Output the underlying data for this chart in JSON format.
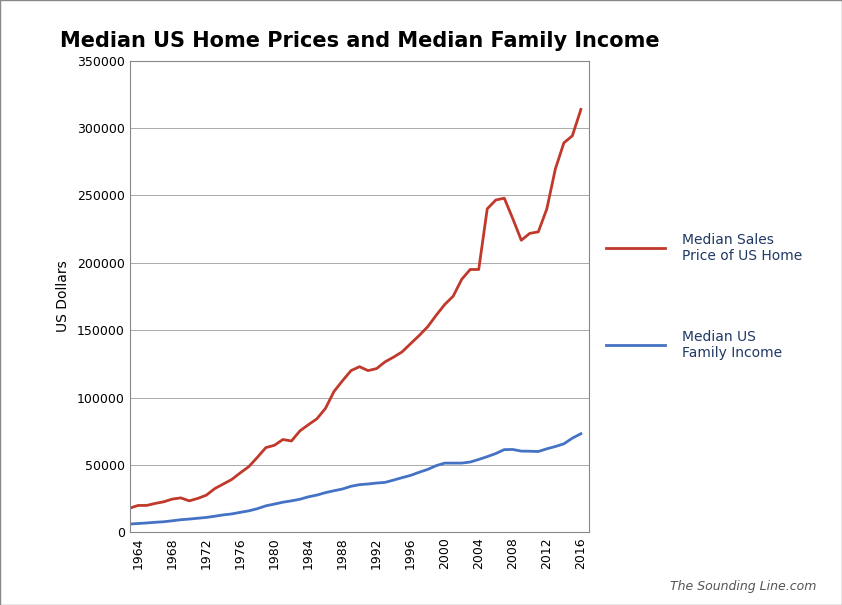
{
  "title": "Median US Home Prices and Median Family Income",
  "ylabel": "US Dollars",
  "background_color": "#ffffff",
  "grid_color": "#aaaaaa",
  "legend_label_home": "Median Sales\nPrice of US Home",
  "legend_label_income": "Median US\nFamily Income",
  "home_color": "#c0392b",
  "income_color": "#4472c4",
  "legend_text_color": "#1f3864",
  "watermark": "The Sounding Line.com",
  "ylim": [
    0,
    350000
  ],
  "yticks": [
    0,
    50000,
    100000,
    150000,
    200000,
    250000,
    300000,
    350000
  ],
  "xlim": [
    1963,
    2017
  ],
  "xticks": [
    1964,
    1968,
    1972,
    1976,
    1980,
    1984,
    1988,
    1992,
    1996,
    2000,
    2004,
    2008,
    2012,
    2016
  ],
  "home_prices": {
    "years": [
      1963,
      1964,
      1965,
      1966,
      1967,
      1968,
      1969,
      1970,
      1971,
      1972,
      1973,
      1974,
      1975,
      1976,
      1977,
      1978,
      1979,
      1980,
      1981,
      1982,
      1983,
      1984,
      1985,
      1986,
      1987,
      1988,
      1989,
      1990,
      1991,
      1992,
      1993,
      1994,
      1995,
      1996,
      1997,
      1998,
      1999,
      2000,
      2001,
      2002,
      2003,
      2004,
      2005,
      2006,
      2007,
      2008,
      2009,
      2010,
      2011,
      2012,
      2013,
      2014,
      2015,
      2016
    ],
    "values": [
      18000,
      20000,
      20000,
      21500,
      22700,
      24700,
      25600,
      23400,
      25200,
      27600,
      32500,
      35900,
      39300,
      44200,
      48800,
      55700,
      62900,
      64600,
      68900,
      67800,
      75300,
      79900,
      84300,
      92000,
      104500,
      112500,
      120000,
      122900,
      120000,
      121500,
      126500,
      130000,
      133900,
      140000,
      146000,
      152500,
      161000,
      169000,
      175200,
      187700,
      195000,
      195000,
      240000,
      246500,
      247900,
      232700,
      216700,
      221800,
      222900,
      240000,
      269500,
      288900,
      294200,
      313700
    ]
  },
  "family_income": {
    "years": [
      1963,
      1964,
      1965,
      1966,
      1967,
      1968,
      1969,
      1970,
      1971,
      1972,
      1973,
      1974,
      1975,
      1976,
      1977,
      1978,
      1979,
      1980,
      1981,
      1982,
      1983,
      1984,
      1985,
      1986,
      1987,
      1988,
      1989,
      1990,
      1991,
      1992,
      1993,
      1994,
      1995,
      1996,
      1997,
      1998,
      1999,
      2000,
      2001,
      2002,
      2003,
      2004,
      2005,
      2006,
      2007,
      2008,
      2009,
      2010,
      2011,
      2012,
      2013,
      2014,
      2015,
      2016
    ],
    "values": [
      6200,
      6600,
      7000,
      7500,
      7900,
      8600,
      9400,
      9900,
      10500,
      11100,
      12000,
      13000,
      13700,
      14900,
      16000,
      17600,
      19700,
      21000,
      22400,
      23400,
      24600,
      26400,
      27700,
      29500,
      30900,
      32200,
      34200,
      35400,
      35900,
      36600,
      37100,
      38800,
      40600,
      42300,
      44600,
      46700,
      49500,
      51400,
      51400,
      51400,
      52200,
      54100,
      56200,
      58500,
      61400,
      61500,
      60300,
      60200,
      60000,
      62000,
      63700,
      65700,
      69900,
      73200
    ]
  }
}
